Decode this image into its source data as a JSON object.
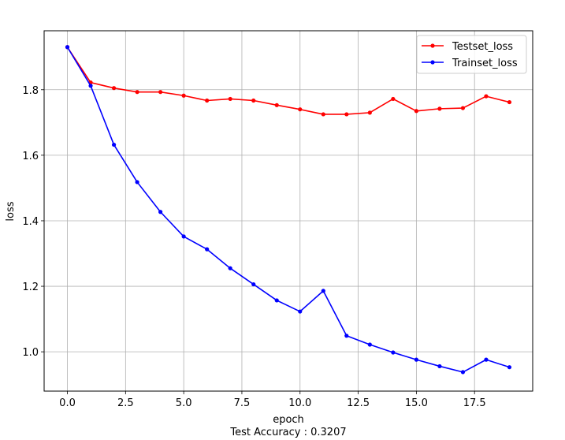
{
  "chart_data": {
    "type": "line",
    "xlabel": "epoch",
    "xlabel_note": "Test Accuracy : 0.3207",
    "ylabel": "loss",
    "xlim": [
      -1,
      20
    ],
    "ylim": [
      0.88,
      1.98
    ],
    "xticks": [
      "0.0",
      "2.5",
      "5.0",
      "7.5",
      "10.0",
      "12.5",
      "15.0",
      "17.5"
    ],
    "yticks": [
      "1.0",
      "1.2",
      "1.4",
      "1.6",
      "1.8"
    ],
    "grid": true,
    "legend_position": "top-right",
    "x": [
      0,
      1,
      2,
      3,
      4,
      5,
      6,
      7,
      8,
      9,
      10,
      11,
      12,
      13,
      14,
      15,
      16,
      17,
      18,
      19
    ],
    "series": [
      {
        "name": "Testset_loss",
        "color": "#ff0000",
        "values": [
          1.93,
          1.822,
          1.805,
          1.793,
          1.793,
          1.782,
          1.767,
          1.772,
          1.767,
          1.753,
          1.74,
          1.725,
          1.725,
          1.73,
          1.772,
          1.735,
          1.742,
          1.744,
          1.78,
          1.762
        ]
      },
      {
        "name": "Trainset_loss",
        "color": "#0000ff",
        "values": [
          1.93,
          1.812,
          1.632,
          1.518,
          1.427,
          1.352,
          1.313,
          1.255,
          1.206,
          1.157,
          1.123,
          1.186,
          1.049,
          1.022,
          0.998,
          0.976,
          0.956,
          0.938,
          0.976,
          0.953
        ]
      }
    ]
  }
}
